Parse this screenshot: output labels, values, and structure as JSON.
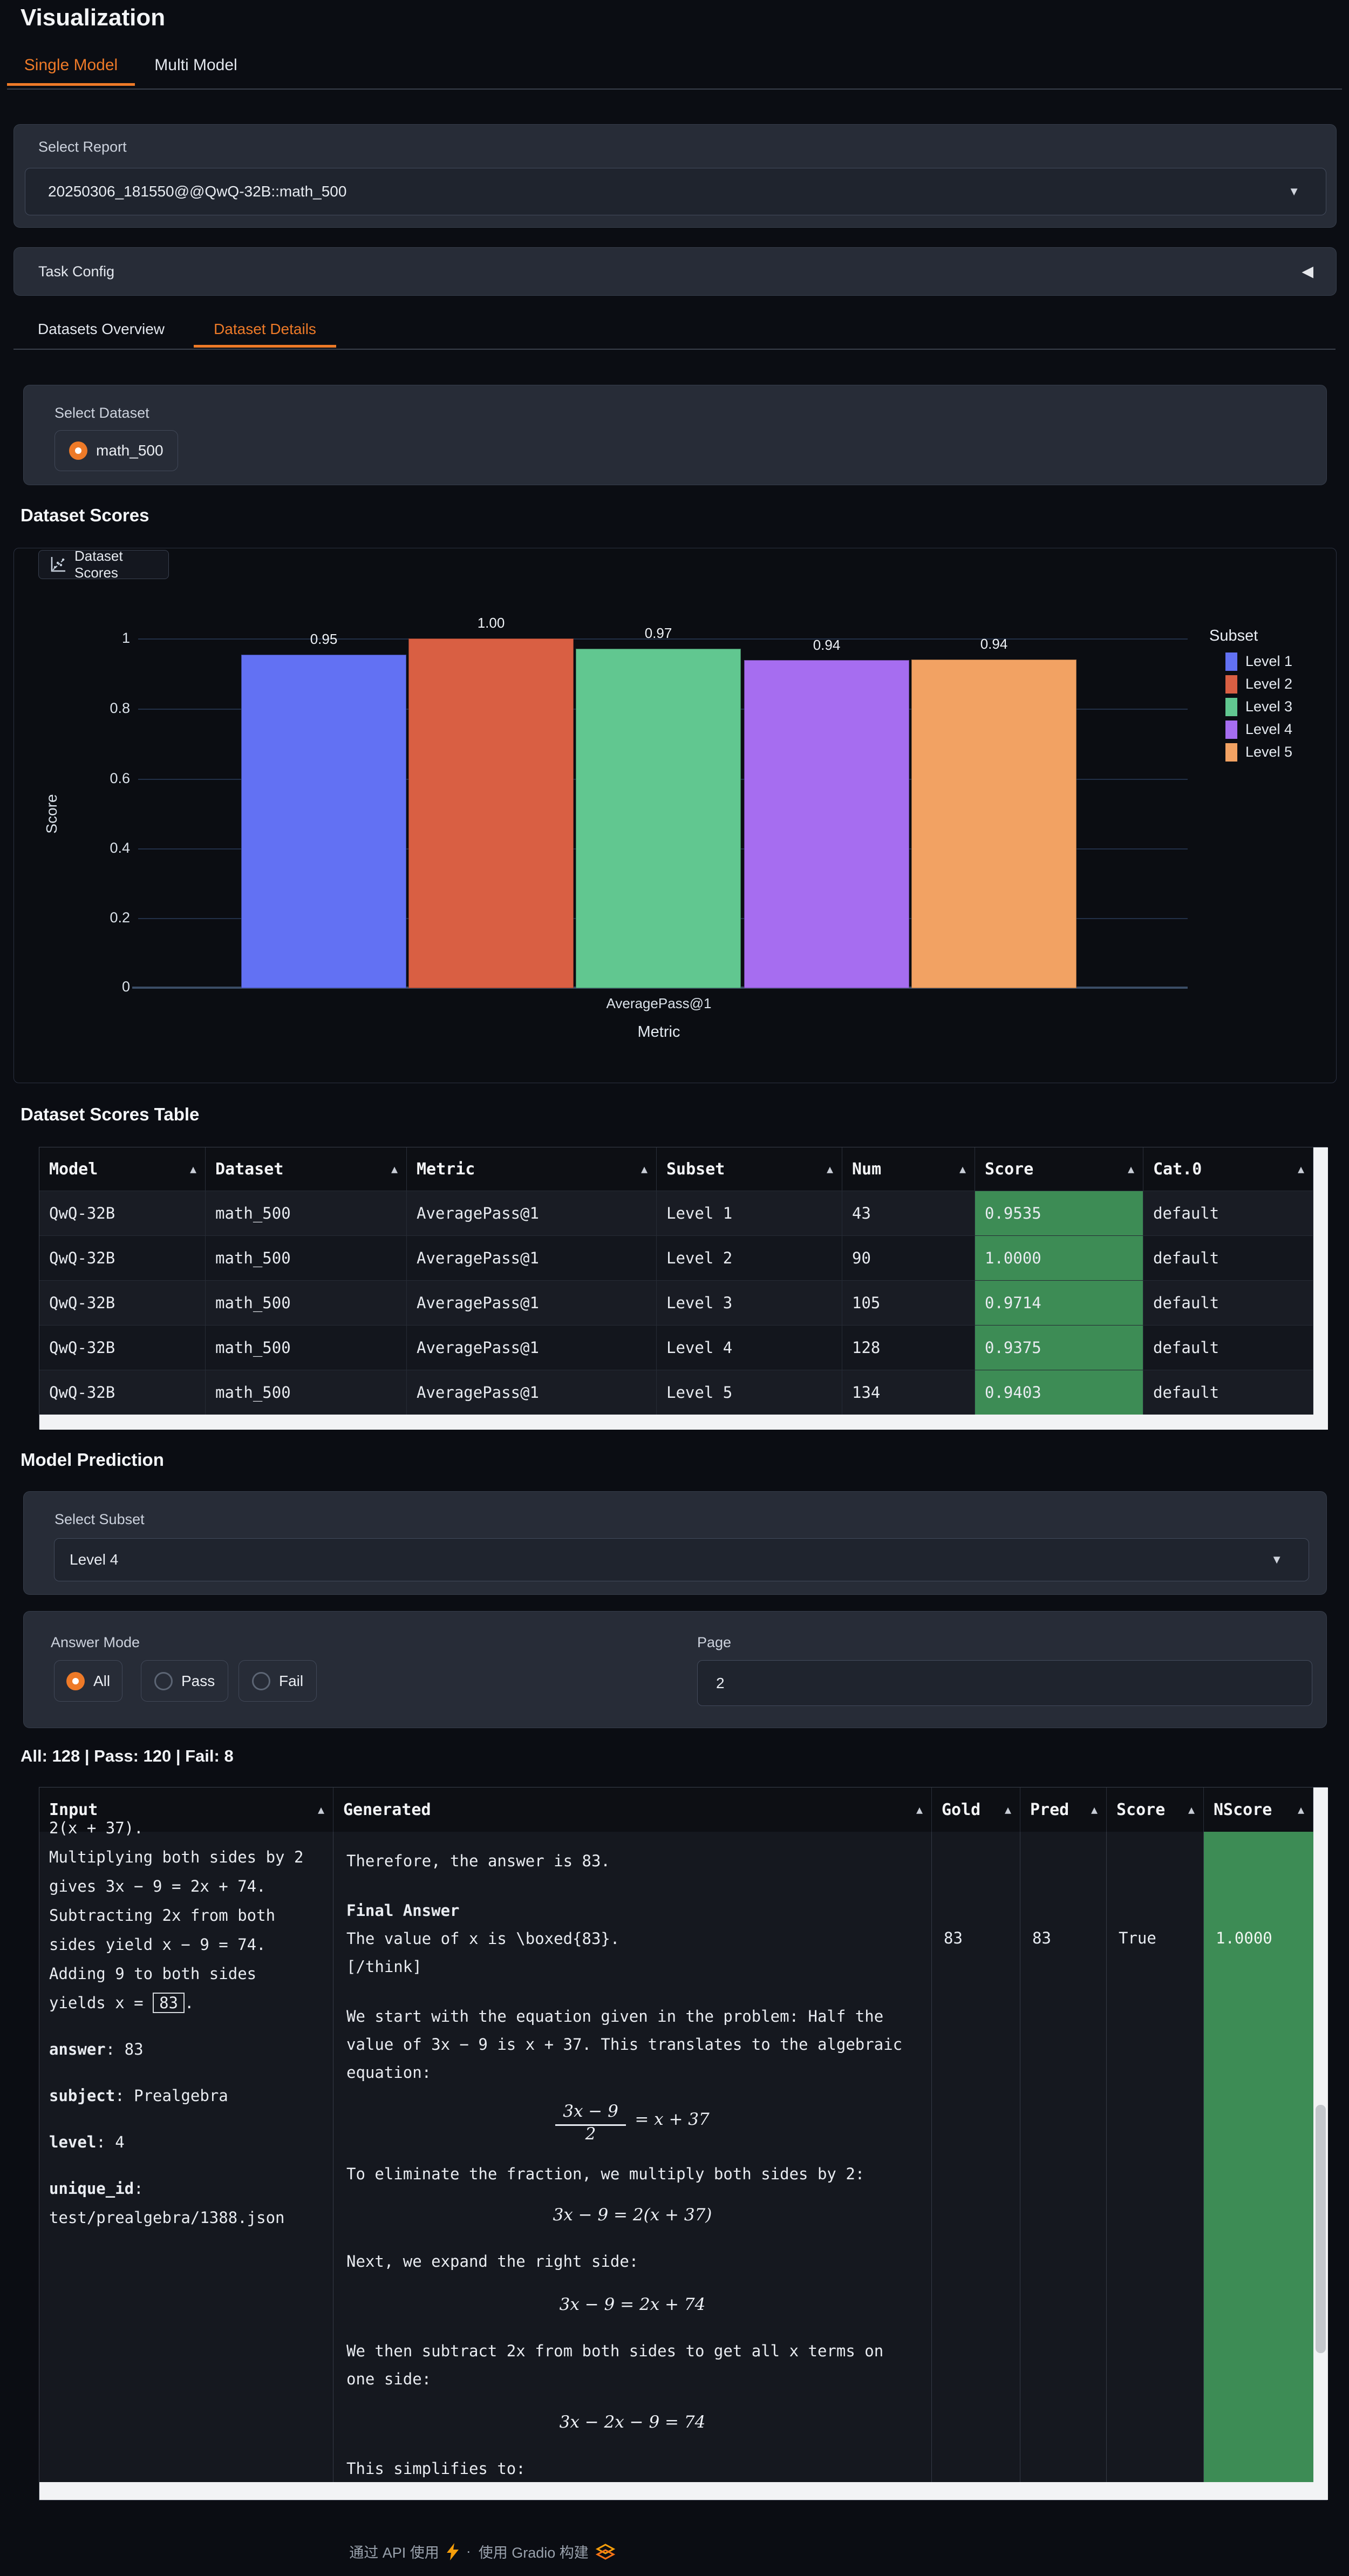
{
  "app": {
    "title": "Visualization"
  },
  "icons": {
    "sort": "▲",
    "dropdown": "▼",
    "collapse": "◀"
  },
  "main_tabs": [
    {
      "label": "Single Model",
      "active": true
    },
    {
      "label": "Multi Model",
      "active": false
    }
  ],
  "report": {
    "label": "Select Report",
    "value": "20250306_181550@@QwQ-32B::math_500"
  },
  "task_config": {
    "label": "Task Config"
  },
  "detail_tabs": [
    {
      "label": "Datasets Overview",
      "active": false
    },
    {
      "label": "Dataset Details",
      "active": true
    }
  ],
  "dataset_select": {
    "label": "Select Dataset",
    "options": [
      {
        "label": "math_500",
        "selected": true
      }
    ]
  },
  "sections": {
    "dataset_scores": "Dataset Scores",
    "dataset_scores_table": "Dataset Scores Table",
    "model_prediction": "Model Prediction"
  },
  "chart": {
    "tab_label": "Dataset Scores"
  },
  "chart_data": {
    "type": "bar",
    "title": "Dataset Scores",
    "categories": [
      "AveragePass@1"
    ],
    "series": [
      {
        "name": "Level 1",
        "values": [
          0.9535
        ],
        "color": "#6271f3"
      },
      {
        "name": "Level 2",
        "values": [
          1.0
        ],
        "color": "#d95f43"
      },
      {
        "name": "Level 3",
        "values": [
          0.9714
        ],
        "color": "#61c790"
      },
      {
        "name": "Level 4",
        "values": [
          0.9375
        ],
        "color": "#a66df0"
      },
      {
        "name": "Level 5",
        "values": [
          0.9403
        ],
        "color": "#f2a263"
      }
    ],
    "bar_labels": [
      "0.95",
      "1.00",
      "0.97",
      "0.94",
      "0.94"
    ],
    "xlabel": "Metric",
    "ylabel": "Score",
    "ylim": [
      0,
      1
    ],
    "yticks": [
      "1",
      "0.8",
      "0.6",
      "0.4",
      "0.2",
      "0"
    ],
    "legend_title": "Subset",
    "legend_position": "right",
    "grid": true
  },
  "scores_table": {
    "columns": [
      "Model",
      "Dataset",
      "Metric",
      "Subset",
      "Num",
      "Score",
      "Cat.0"
    ],
    "rows": [
      {
        "model": "QwQ-32B",
        "dataset": "math_500",
        "metric": "AveragePass@1",
        "subset": "Level 1",
        "num": "43",
        "score": "0.9535",
        "cat": "default"
      },
      {
        "model": "QwQ-32B",
        "dataset": "math_500",
        "metric": "AveragePass@1",
        "subset": "Level 2",
        "num": "90",
        "score": "1.0000",
        "cat": "default"
      },
      {
        "model": "QwQ-32B",
        "dataset": "math_500",
        "metric": "AveragePass@1",
        "subset": "Level 3",
        "num": "105",
        "score": "0.9714",
        "cat": "default"
      },
      {
        "model": "QwQ-32B",
        "dataset": "math_500",
        "metric": "AveragePass@1",
        "subset": "Level 4",
        "num": "128",
        "score": "0.9375",
        "cat": "default"
      },
      {
        "model": "QwQ-32B",
        "dataset": "math_500",
        "metric": "AveragePass@1",
        "subset": "Level 5",
        "num": "134",
        "score": "0.9403",
        "cat": "default"
      }
    ]
  },
  "subset_select": {
    "label": "Select Subset",
    "value": "Level 4"
  },
  "answer_mode": {
    "label": "Answer Mode",
    "options": [
      "All",
      "Pass",
      "Fail"
    ],
    "selected": "All"
  },
  "page": {
    "label": "Page",
    "value": "2"
  },
  "counts": {
    "text": "All: 128 | Pass: 120 | Fail: 8"
  },
  "prediction_table": {
    "columns": [
      "Input",
      "Generated",
      "Gold",
      "Pred",
      "Score",
      "NScore"
    ],
    "row": {
      "input": {
        "clipped": "2(x + 37).",
        "lines": [
          "Multiplying both sides by 2",
          "gives 3x − 9 = 2x + 74.",
          "Subtracting 2x from both",
          "sides yield x − 9 = 74.",
          "Adding 9 to both sides"
        ],
        "yields_pre": "yields x = ",
        "yields_box": "83",
        "yields_post": ".",
        "fields": [
          {
            "key": "answer",
            "value": ": 83"
          },
          {
            "key": "subject",
            "value": ": Prealgebra"
          },
          {
            "key": "level",
            "value": ": 4"
          },
          {
            "key": "unique_id",
            "value": ":"
          }
        ],
        "uid_path": "test/prealgebra/1388.json"
      },
      "gen": {
        "p_therefore": "Therefore, the answer is 83.",
        "final_answer": "Final Answer",
        "p_value": "The value of x is \\boxed{83}.",
        "p_think": "[/think]",
        "p_start": "We start with the equation given in the problem: Half the value of 3x − 9 is x + 37. This translates to the algebraic equation:",
        "frac_num": "3x − 9",
        "frac_den": "2",
        "frac_rhs": "= x + 37",
        "p_eliminate": "To eliminate the fraction, we multiply both sides by 2:",
        "eq1": "3x − 9 = 2(x + 37)",
        "p_expand": "Next, we expand the right side:",
        "eq2": "3x − 9 = 2x + 74",
        "p_subtract": "We then subtract 2x from both sides to get all x terms on one side:",
        "eq3": "3x − 2x − 9 = 74",
        "p_simplify": "This simplifies to:"
      },
      "gold": "83",
      "pred": "83",
      "score": "True",
      "nscore": "1.0000"
    }
  },
  "footer": {
    "api_text": "通过 API 使用",
    "sep": "·",
    "built_text": "使用 Gradio 构建"
  }
}
